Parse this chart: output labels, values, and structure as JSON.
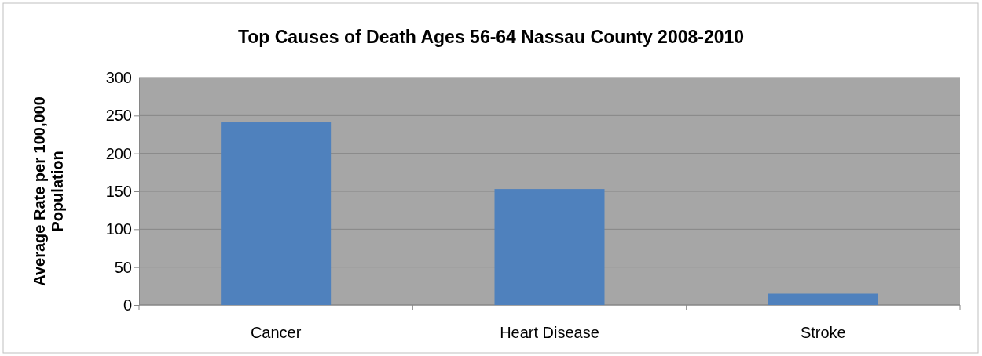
{
  "chart_data": {
    "type": "bar",
    "title": "Top Causes of Death Ages 56-64 Nassau County 2008-2010",
    "ylabel": "Average Rate per 100,000 Population",
    "categories": [
      "Cancer",
      "Heart Disease",
      "Stroke"
    ],
    "values": [
      241,
      153,
      15
    ],
    "color": "#4f81bd",
    "ylim": [
      0,
      300
    ],
    "yticks": [
      0,
      50,
      100,
      150,
      200,
      250,
      300
    ],
    "grid": "y"
  }
}
